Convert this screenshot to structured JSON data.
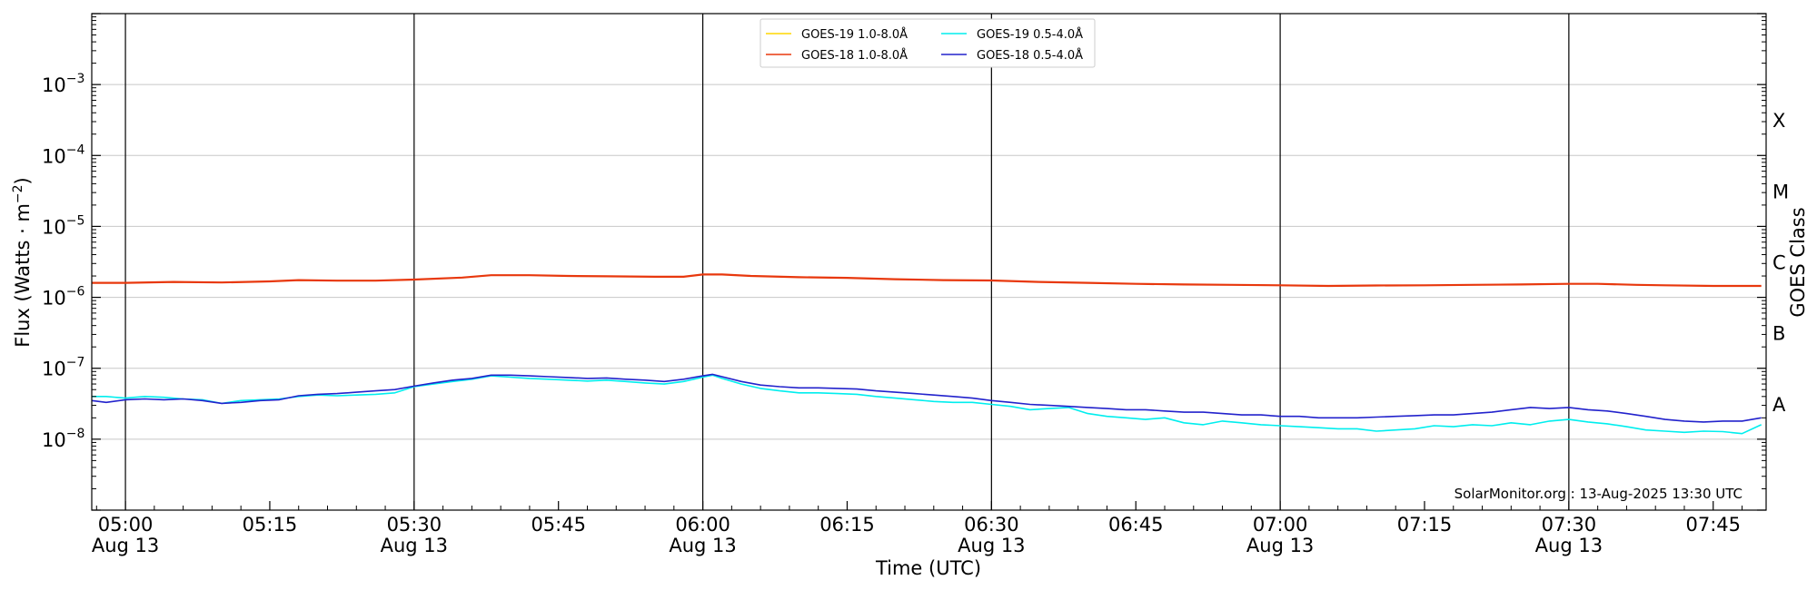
{
  "chart_data": {
    "type": "line",
    "xlabel": "Time (UTC)",
    "ylabel": "Flux (Watts · m",
    "ylabel_sup": "−2",
    "ylabel_close": ")",
    "y2label": "GOES Class",
    "yscale": "log",
    "ylim": [
      1e-09,
      0.01
    ],
    "xlim_minutes": [
      296.5,
      470.5
    ],
    "x_ticks": [
      {
        "minute": 300,
        "time": "05:00",
        "date": "Aug 13"
      },
      {
        "minute": 315,
        "time": "05:15",
        "date": ""
      },
      {
        "minute": 330,
        "time": "05:30",
        "date": "Aug 13"
      },
      {
        "minute": 345,
        "time": "05:45",
        "date": ""
      },
      {
        "minute": 360,
        "time": "06:00",
        "date": "Aug 13"
      },
      {
        "minute": 375,
        "time": "06:15",
        "date": ""
      },
      {
        "minute": 390,
        "time": "06:30",
        "date": "Aug 13"
      },
      {
        "minute": 405,
        "time": "06:45",
        "date": ""
      },
      {
        "minute": 420,
        "time": "07:00",
        "date": "Aug 13"
      },
      {
        "minute": 435,
        "time": "07:15",
        "date": ""
      },
      {
        "minute": 450,
        "time": "07:30",
        "date": "Aug 13"
      },
      {
        "minute": 465,
        "time": "07:45",
        "date": ""
      }
    ],
    "vlines_minutes": [
      300,
      330,
      360,
      390,
      420,
      450
    ],
    "y_ticks": [
      {
        "exp": -3,
        "base": "10",
        "sup": "−3"
      },
      {
        "exp": -4,
        "base": "10",
        "sup": "−4"
      },
      {
        "exp": -5,
        "base": "10",
        "sup": "−5"
      },
      {
        "exp": -6,
        "base": "10",
        "sup": "−6"
      },
      {
        "exp": -7,
        "base": "10",
        "sup": "−7"
      },
      {
        "exp": -8,
        "base": "10",
        "sup": "−8"
      }
    ],
    "goes_classes": [
      {
        "label": "X",
        "exp": -3.5
      },
      {
        "label": "M",
        "exp": -4.5
      },
      {
        "label": "C",
        "exp": -5.5
      },
      {
        "label": "B",
        "exp": -6.5
      },
      {
        "label": "A",
        "exp": -7.5
      }
    ],
    "grid": true,
    "legend_position": "top-center",
    "series": [
      {
        "name": "GOES-19 1.0-8.0Å",
        "color": "#FFD700",
        "points": []
      },
      {
        "name": "GOES-18 1.0-8.0Å",
        "color": "#E8380D",
        "points": [
          [
            296.5,
            1.6e-06
          ],
          [
            300,
            1.6e-06
          ],
          [
            305,
            1.65e-06
          ],
          [
            310,
            1.62e-06
          ],
          [
            315,
            1.68e-06
          ],
          [
            318,
            1.75e-06
          ],
          [
            322,
            1.72e-06
          ],
          [
            326,
            1.72e-06
          ],
          [
            330,
            1.78e-06
          ],
          [
            335,
            1.9e-06
          ],
          [
            338,
            2.05e-06
          ],
          [
            342,
            2.05e-06
          ],
          [
            346,
            2e-06
          ],
          [
            350,
            1.98e-06
          ],
          [
            355,
            1.95e-06
          ],
          [
            358,
            1.95e-06
          ],
          [
            360,
            2.1e-06
          ],
          [
            362,
            2.1e-06
          ],
          [
            365,
            2e-06
          ],
          [
            370,
            1.92e-06
          ],
          [
            375,
            1.88e-06
          ],
          [
            380,
            1.8e-06
          ],
          [
            385,
            1.75e-06
          ],
          [
            390,
            1.73e-06
          ],
          [
            395,
            1.65e-06
          ],
          [
            400,
            1.6e-06
          ],
          [
            405,
            1.55e-06
          ],
          [
            410,
            1.52e-06
          ],
          [
            415,
            1.5e-06
          ],
          [
            420,
            1.48e-06
          ],
          [
            425,
            1.45e-06
          ],
          [
            430,
            1.47e-06
          ],
          [
            435,
            1.48e-06
          ],
          [
            440,
            1.5e-06
          ],
          [
            445,
            1.52e-06
          ],
          [
            450,
            1.55e-06
          ],
          [
            453,
            1.55e-06
          ],
          [
            457,
            1.5e-06
          ],
          [
            460,
            1.48e-06
          ],
          [
            465,
            1.45e-06
          ],
          [
            470,
            1.45e-06
          ]
        ]
      },
      {
        "name": "GOES-19 0.5-4.0Å",
        "color": "#00EEEE",
        "points": [
          [
            296.5,
            4e-08
          ],
          [
            298,
            4e-08
          ],
          [
            300,
            3.8e-08
          ],
          [
            302,
            4e-08
          ],
          [
            304,
            3.9e-08
          ],
          [
            306,
            3.7e-08
          ],
          [
            308,
            3.6e-08
          ],
          [
            310,
            3.2e-08
          ],
          [
            312,
            3.5e-08
          ],
          [
            314,
            3.6e-08
          ],
          [
            316,
            3.7e-08
          ],
          [
            318,
            4e-08
          ],
          [
            320,
            4.2e-08
          ],
          [
            322,
            4.1e-08
          ],
          [
            324,
            4.2e-08
          ],
          [
            326,
            4.3e-08
          ],
          [
            328,
            4.5e-08
          ],
          [
            330,
            5.5e-08
          ],
          [
            332,
            6e-08
          ],
          [
            334,
            6.5e-08
          ],
          [
            336,
            7e-08
          ],
          [
            338,
            7.8e-08
          ],
          [
            340,
            7.5e-08
          ],
          [
            342,
            7.2e-08
          ],
          [
            344,
            7e-08
          ],
          [
            346,
            6.8e-08
          ],
          [
            348,
            6.6e-08
          ],
          [
            350,
            6.8e-08
          ],
          [
            352,
            6.5e-08
          ],
          [
            354,
            6.2e-08
          ],
          [
            356,
            6e-08
          ],
          [
            358,
            6.5e-08
          ],
          [
            360,
            7.5e-08
          ],
          [
            361,
            8e-08
          ],
          [
            362,
            7.2e-08
          ],
          [
            364,
            6e-08
          ],
          [
            366,
            5.2e-08
          ],
          [
            368,
            4.8e-08
          ],
          [
            370,
            4.5e-08
          ],
          [
            372,
            4.5e-08
          ],
          [
            374,
            4.4e-08
          ],
          [
            376,
            4.3e-08
          ],
          [
            378,
            4e-08
          ],
          [
            380,
            3.8e-08
          ],
          [
            382,
            3.6e-08
          ],
          [
            384,
            3.4e-08
          ],
          [
            386,
            3.3e-08
          ],
          [
            388,
            3.3e-08
          ],
          [
            390,
            3.1e-08
          ],
          [
            392,
            2.9e-08
          ],
          [
            394,
            2.6e-08
          ],
          [
            396,
            2.7e-08
          ],
          [
            398,
            2.8e-08
          ],
          [
            400,
            2.3e-08
          ],
          [
            402,
            2.1e-08
          ],
          [
            404,
            2e-08
          ],
          [
            406,
            1.9e-08
          ],
          [
            408,
            2e-08
          ],
          [
            410,
            1.7e-08
          ],
          [
            412,
            1.6e-08
          ],
          [
            414,
            1.8e-08
          ],
          [
            416,
            1.7e-08
          ],
          [
            418,
            1.6e-08
          ],
          [
            420,
            1.55e-08
          ],
          [
            422,
            1.5e-08
          ],
          [
            424,
            1.45e-08
          ],
          [
            426,
            1.4e-08
          ],
          [
            428,
            1.4e-08
          ],
          [
            430,
            1.3e-08
          ],
          [
            432,
            1.35e-08
          ],
          [
            434,
            1.4e-08
          ],
          [
            436,
            1.55e-08
          ],
          [
            438,
            1.5e-08
          ],
          [
            440,
            1.6e-08
          ],
          [
            442,
            1.55e-08
          ],
          [
            444,
            1.7e-08
          ],
          [
            446,
            1.6e-08
          ],
          [
            448,
            1.8e-08
          ],
          [
            450,
            1.9e-08
          ],
          [
            452,
            1.75e-08
          ],
          [
            454,
            1.65e-08
          ],
          [
            456,
            1.5e-08
          ],
          [
            458,
            1.35e-08
          ],
          [
            460,
            1.3e-08
          ],
          [
            462,
            1.25e-08
          ],
          [
            464,
            1.3e-08
          ],
          [
            466,
            1.28e-08
          ],
          [
            468,
            1.2e-08
          ],
          [
            470,
            1.6e-08
          ]
        ]
      },
      {
        "name": "GOES-18 0.5-4.0Å",
        "color": "#2222CC",
        "points": [
          [
            296.5,
            3.5e-08
          ],
          [
            298,
            3.3e-08
          ],
          [
            300,
            3.6e-08
          ],
          [
            302,
            3.7e-08
          ],
          [
            304,
            3.6e-08
          ],
          [
            306,
            3.7e-08
          ],
          [
            308,
            3.5e-08
          ],
          [
            310,
            3.2e-08
          ],
          [
            312,
            3.3e-08
          ],
          [
            314,
            3.5e-08
          ],
          [
            316,
            3.6e-08
          ],
          [
            318,
            4.1e-08
          ],
          [
            320,
            4.3e-08
          ],
          [
            322,
            4.4e-08
          ],
          [
            324,
            4.6e-08
          ],
          [
            326,
            4.8e-08
          ],
          [
            328,
            5e-08
          ],
          [
            330,
            5.6e-08
          ],
          [
            332,
            6.2e-08
          ],
          [
            334,
            6.8e-08
          ],
          [
            336,
            7.2e-08
          ],
          [
            338,
            8e-08
          ],
          [
            340,
            8e-08
          ],
          [
            342,
            7.8e-08
          ],
          [
            344,
            7.6e-08
          ],
          [
            346,
            7.4e-08
          ],
          [
            348,
            7.2e-08
          ],
          [
            350,
            7.3e-08
          ],
          [
            352,
            7e-08
          ],
          [
            354,
            6.8e-08
          ],
          [
            356,
            6.5e-08
          ],
          [
            358,
            7e-08
          ],
          [
            360,
            7.8e-08
          ],
          [
            361,
            8.2e-08
          ],
          [
            362,
            7.6e-08
          ],
          [
            364,
            6.5e-08
          ],
          [
            366,
            5.8e-08
          ],
          [
            368,
            5.5e-08
          ],
          [
            370,
            5.3e-08
          ],
          [
            372,
            5.3e-08
          ],
          [
            374,
            5.2e-08
          ],
          [
            376,
            5.1e-08
          ],
          [
            378,
            4.8e-08
          ],
          [
            380,
            4.6e-08
          ],
          [
            382,
            4.4e-08
          ],
          [
            384,
            4.2e-08
          ],
          [
            386,
            4e-08
          ],
          [
            388,
            3.8e-08
          ],
          [
            390,
            3.5e-08
          ],
          [
            392,
            3.3e-08
          ],
          [
            394,
            3.1e-08
          ],
          [
            396,
            3e-08
          ],
          [
            398,
            2.9e-08
          ],
          [
            400,
            2.8e-08
          ],
          [
            402,
            2.7e-08
          ],
          [
            404,
            2.6e-08
          ],
          [
            406,
            2.6e-08
          ],
          [
            408,
            2.5e-08
          ],
          [
            410,
            2.4e-08
          ],
          [
            412,
            2.4e-08
          ],
          [
            414,
            2.3e-08
          ],
          [
            416,
            2.2e-08
          ],
          [
            418,
            2.2e-08
          ],
          [
            420,
            2.1e-08
          ],
          [
            422,
            2.1e-08
          ],
          [
            424,
            2e-08
          ],
          [
            426,
            2e-08
          ],
          [
            428,
            2e-08
          ],
          [
            430,
            2.05e-08
          ],
          [
            432,
            2.1e-08
          ],
          [
            434,
            2.15e-08
          ],
          [
            436,
            2.2e-08
          ],
          [
            438,
            2.2e-08
          ],
          [
            440,
            2.3e-08
          ],
          [
            442,
            2.4e-08
          ],
          [
            444,
            2.6e-08
          ],
          [
            446,
            2.8e-08
          ],
          [
            448,
            2.7e-08
          ],
          [
            450,
            2.8e-08
          ],
          [
            452,
            2.6e-08
          ],
          [
            454,
            2.5e-08
          ],
          [
            456,
            2.3e-08
          ],
          [
            458,
            2.1e-08
          ],
          [
            460,
            1.9e-08
          ],
          [
            462,
            1.8e-08
          ],
          [
            464,
            1.75e-08
          ],
          [
            466,
            1.8e-08
          ],
          [
            468,
            1.8e-08
          ],
          [
            470,
            2e-08
          ]
        ]
      }
    ],
    "annotation": "SolarMonitor.org : 13-Aug-2025 13:30 UTC"
  }
}
